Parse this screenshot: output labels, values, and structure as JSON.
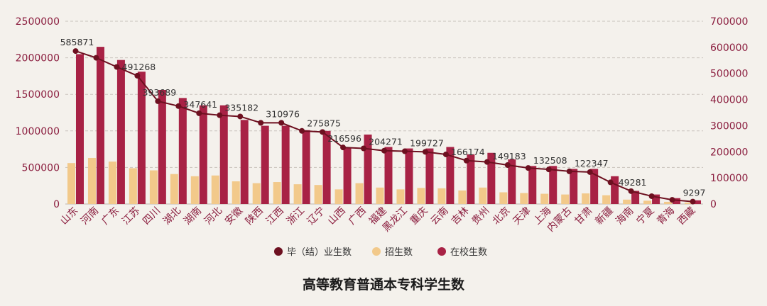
{
  "chart_data": {
    "type": "bar",
    "title": "高等教育普通本专科学生数",
    "categories": [
      "山东",
      "河南",
      "广东",
      "江苏",
      "四川",
      "湖北",
      "湖南",
      "河北",
      "安徽",
      "陕西",
      "江西",
      "浙江",
      "辽宁",
      "山西",
      "广西",
      "福建",
      "黑龙江",
      "重庆",
      "云南",
      "吉林",
      "贵州",
      "北京",
      "天津",
      "上海",
      "内蒙古",
      "甘肃",
      "新疆",
      "海南",
      "宁夏",
      "青海",
      "西藏"
    ],
    "left_axis": {
      "ylim": [
        0,
        2500000
      ],
      "ticks": [
        "0",
        "500000",
        "1000000",
        "1500000",
        "2000000",
        "2500000"
      ]
    },
    "right_axis": {
      "ylim": [
        0,
        700000
      ],
      "ticks": [
        "0",
        "100000",
        "200000",
        "300000",
        "400000",
        "500000",
        "600000",
        "700000"
      ]
    },
    "grid": true,
    "legend_position": "bottom",
    "series": [
      {
        "name": "毕（结）业生数",
        "kind": "line",
        "axis": "right",
        "color": "#6d1020",
        "values": [
          585871,
          560000,
          525000,
          491268,
          393689,
          375000,
          347641,
          340000,
          335182,
          310976,
          310976,
          280000,
          275875,
          216596,
          213000,
          204271,
          202000,
          199727,
          190000,
          166174,
          161000,
          149183,
          138000,
          132508,
          125000,
          122347,
          83000,
          49281,
          30000,
          16000,
          9297
        ],
        "labels": [
          "585871",
          "",
          "",
          "491268",
          "393689",
          "",
          "347641",
          "",
          "335182",
          "",
          "310976",
          "",
          "275875",
          "216596",
          "",
          "204271",
          "",
          "199727",
          "",
          "166174",
          "",
          "149183",
          "",
          "132508",
          "",
          "122347",
          "",
          "49281",
          "",
          "",
          "9297"
        ]
      },
      {
        "name": "招生数",
        "kind": "bar",
        "axis": "left",
        "color": "#f2c98a",
        "values": [
          560000,
          630000,
          580000,
          490000,
          460000,
          410000,
          380000,
          390000,
          310000,
          285000,
          300000,
          270000,
          260000,
          200000,
          285000,
          225000,
          200000,
          220000,
          215000,
          185000,
          225000,
          160000,
          150000,
          140000,
          130000,
          145000,
          120000,
          60000,
          45000,
          30000,
          20000
        ]
      },
      {
        "name": "在校生数",
        "kind": "bar",
        "axis": "left",
        "color": "#a82245",
        "values": [
          2050000,
          2150000,
          1970000,
          1810000,
          1560000,
          1450000,
          1350000,
          1350000,
          1150000,
          1070000,
          1070000,
          1010000,
          1000000,
          770000,
          950000,
          780000,
          760000,
          760000,
          780000,
          680000,
          700000,
          610000,
          520000,
          520000,
          480000,
          480000,
          380000,
          180000,
          130000,
          80000,
          50000
        ]
      }
    ]
  }
}
